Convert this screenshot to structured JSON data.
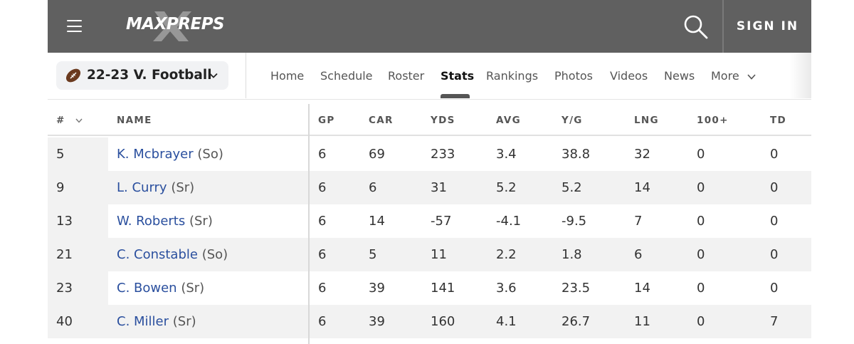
{
  "header": {
    "logo_text": "MAXPREPS",
    "signin_label": "SIGN IN"
  },
  "subnav": {
    "sport_label": "22-23 V. Football",
    "tabs": [
      {
        "label": "Home"
      },
      {
        "label": "Schedule"
      },
      {
        "label": "Roster"
      },
      {
        "label": "Stats"
      },
      {
        "label": "Rankings"
      },
      {
        "label": "Photos"
      },
      {
        "label": "Videos"
      },
      {
        "label": "News"
      },
      {
        "label": "More"
      }
    ],
    "active_tab": "Stats"
  },
  "table": {
    "columns": [
      "#",
      "NAME",
      "GP",
      "CAR",
      "YDS",
      "AVG",
      "Y/G",
      "LNG",
      "100+",
      "TD"
    ],
    "rows": [
      {
        "num": "5",
        "name": "K. Mcbrayer",
        "cls": "(So)",
        "gp": "6",
        "car": "69",
        "yds": "233",
        "avg": "3.4",
        "yg": "38.8",
        "lng": "32",
        "h100": "0",
        "td": "0"
      },
      {
        "num": "9",
        "name": "L. Curry",
        "cls": "(Sr)",
        "gp": "6",
        "car": "6",
        "yds": "31",
        "avg": "5.2",
        "yg": "5.2",
        "lng": "14",
        "h100": "0",
        "td": "0"
      },
      {
        "num": "13",
        "name": "W. Roberts",
        "cls": "(Sr)",
        "gp": "6",
        "car": "14",
        "yds": "-57",
        "avg": "-4.1",
        "yg": "-9.5",
        "lng": "7",
        "h100": "0",
        "td": "0"
      },
      {
        "num": "21",
        "name": "C. Constable",
        "cls": "(So)",
        "gp": "6",
        "car": "5",
        "yds": "11",
        "avg": "2.2",
        "yg": "1.8",
        "lng": "6",
        "h100": "0",
        "td": "0"
      },
      {
        "num": "23",
        "name": "C. Bowen",
        "cls": "(Sr)",
        "gp": "6",
        "car": "39",
        "yds": "141",
        "avg": "3.6",
        "yg": "23.5",
        "lng": "14",
        "h100": "0",
        "td": "0"
      },
      {
        "num": "40",
        "name": "C. Miller",
        "cls": "(Sr)",
        "gp": "6",
        "car": "39",
        "yds": "160",
        "avg": "4.1",
        "yg": "26.7",
        "lng": "11",
        "h100": "0",
        "td": "7"
      }
    ]
  },
  "colors": {
    "header_bg": "#606060",
    "link_blue": "#2a4f9e",
    "row_alt": "#f2f2f2"
  }
}
